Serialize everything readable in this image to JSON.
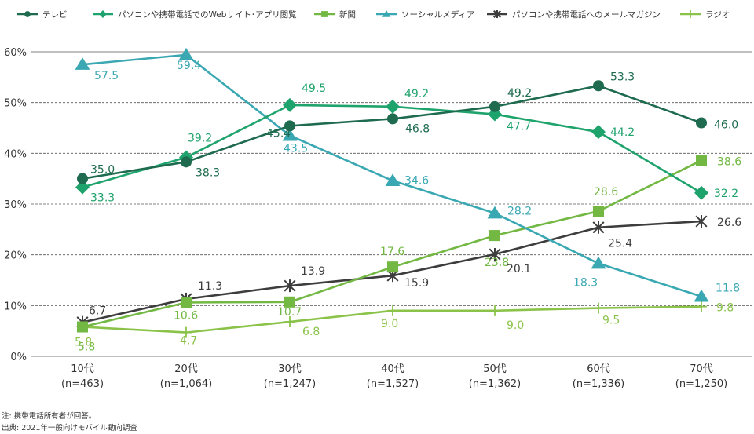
{
  "chart_data": {
    "type": "line",
    "categories": [
      "10代\n(n=463)",
      "20代\n(n=1,064)",
      "30代\n(n=1,247)",
      "40代\n(n=1,527)",
      "50代\n(n=1,362)",
      "60代\n(n=1,336)",
      "70代\n(n=1,250)"
    ],
    "category_lines": [
      [
        "10代",
        "(n=463)"
      ],
      [
        "20代",
        "(n=1,064)"
      ],
      [
        "30代",
        "(n=1,247)"
      ],
      [
        "40代",
        "(n=1,527)"
      ],
      [
        "50代",
        "(n=1,362)"
      ],
      [
        "60代",
        "(n=1,336)"
      ],
      [
        "70代",
        "(n=1,250)"
      ]
    ],
    "ylim": [
      0,
      60
    ],
    "yticks": [
      "0%",
      "10%",
      "20%",
      "30%",
      "40%",
      "50%",
      "60%"
    ],
    "grid": true,
    "legend_placement": "top",
    "series": [
      {
        "name": "テレビ",
        "color": "#1e6b4f",
        "marker": "circle",
        "values": [
          35.0,
          38.3,
          45.4,
          46.8,
          49.2,
          53.3,
          46.0
        ]
      },
      {
        "name": "パソコンや携帯電話でのWebサイト･アプリ閲覧",
        "color": "#1fa36c",
        "marker": "diamond",
        "values": [
          33.3,
          39.2,
          49.5,
          49.2,
          47.7,
          44.2,
          32.2
        ]
      },
      {
        "name": "新聞",
        "color": "#72b843",
        "marker": "square",
        "values": [
          5.8,
          10.6,
          10.7,
          17.6,
          23.8,
          28.6,
          38.6
        ]
      },
      {
        "name": "ソーシャルメディア",
        "color": "#3aa8b3",
        "marker": "triangle",
        "values": [
          57.5,
          59.4,
          43.5,
          34.6,
          28.2,
          18.3,
          11.8
        ]
      },
      {
        "name": "パソコンや携帯電話へのメールマガジン",
        "color": "#3d3d3d",
        "marker": "asterisk",
        "values": [
          6.7,
          11.3,
          13.9,
          15.9,
          20.1,
          25.4,
          26.6
        ]
      },
      {
        "name": "ラジオ",
        "color": "#8bc34a",
        "marker": "plus",
        "values": [
          5.8,
          4.7,
          6.8,
          9.0,
          9.0,
          9.5,
          9.8
        ]
      }
    ],
    "notes": [
      "注: 携帯電話所有者が回答。",
      "出典: 2021年一般向けモバイル動向調査"
    ]
  }
}
